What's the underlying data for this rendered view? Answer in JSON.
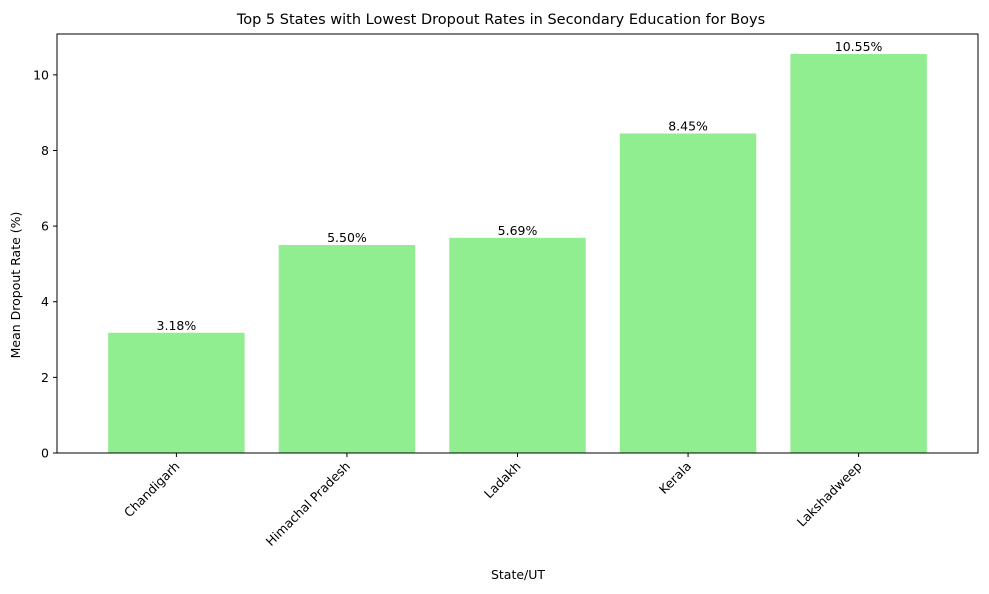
{
  "chart_data": {
    "type": "bar",
    "title": "Top 5 States with Lowest Dropout Rates in Secondary Education for Boys",
    "xlabel": "State/UT",
    "ylabel": "Mean Dropout Rate (%)",
    "categories": [
      "Chandigarh",
      "Himachal Pradesh",
      "Ladakh",
      "Kerala",
      "Lakshadweep"
    ],
    "values": [
      3.18,
      5.5,
      5.69,
      8.45,
      10.55
    ],
    "value_labels": [
      "3.18%",
      "5.50%",
      "5.69%",
      "8.45%",
      "10.55%"
    ],
    "ylim": [
      0,
      11.08
    ],
    "yticks": [
      0,
      2,
      4,
      6,
      8,
      10
    ],
    "ytick_labels": [
      "0",
      "2",
      "4",
      "6",
      "8",
      "10"
    ],
    "grid": false,
    "legend": "none",
    "colors": {
      "bar": "#90ee90",
      "axis": "#000000",
      "text": "#000000",
      "background": "#ffffff"
    }
  }
}
